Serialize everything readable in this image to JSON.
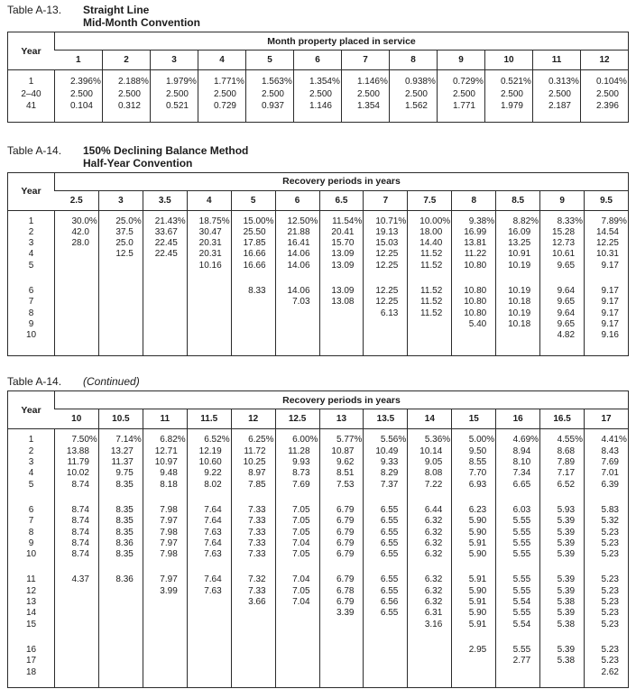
{
  "tables": [
    {
      "label": "Table A-13.",
      "title_lines": [
        "Straight Line",
        "Mid-Month Convention"
      ],
      "title_style": "bold",
      "year_header": "Year",
      "span_header": "Month property placed in service",
      "columns": [
        "1",
        "2",
        "3",
        "4",
        "5",
        "6",
        "7",
        "8",
        "9",
        "10",
        "11",
        "12"
      ],
      "groups": [
        [
          {
            "year": "1",
            "values": [
              "2.396%",
              "2.188%",
              "1.979%",
              "1.771%",
              "1.563%",
              "1.354%",
              "1.146%",
              "0.938%",
              "0.729%",
              "0.521%",
              "0.313%",
              "0.104%"
            ]
          },
          {
            "year": "2–40",
            "values": [
              "2.500",
              "2.500",
              "2.500",
              "2.500",
              "2.500",
              "2.500",
              "2.500",
              "2.500",
              "2.500",
              "2.500",
              "2.500",
              "2.500"
            ]
          },
          {
            "year": "41",
            "values": [
              "0.104",
              "0.312",
              "0.521",
              "0.729",
              "0.937",
              "1.146",
              "1.354",
              "1.562",
              "1.771",
              "1.979",
              "2.187",
              "2.396"
            ]
          }
        ]
      ]
    },
    {
      "label": "Table A-14.",
      "title_lines": [
        "150% Declining Balance Method",
        "Half-Year Convention"
      ],
      "title_style": "bold",
      "year_header": "Year",
      "span_header": "Recovery periods in years",
      "columns": [
        "2.5",
        "3",
        "3.5",
        "4",
        "5",
        "6",
        "6.5",
        "7",
        "7.5",
        "8",
        "8.5",
        "9",
        "9.5"
      ],
      "groups": [
        [
          {
            "year": "1",
            "values": [
              "30.0%",
              "25.0%",
              "21.43%",
              "18.75%",
              "15.00%",
              "12.50%",
              "11.54%",
              "10.71%",
              "10.00%",
              "9.38%",
              "8.82%",
              "8.33%",
              "7.89%"
            ]
          },
          {
            "year": "2",
            "values": [
              "42.0",
              "37.5",
              "33.67",
              "30.47",
              "25.50",
              "21.88",
              "20.41",
              "19.13",
              "18.00",
              "16.99",
              "16.09",
              "15.28",
              "14.54"
            ]
          },
          {
            "year": "3",
            "values": [
              "28.0",
              "25.0",
              "22.45",
              "20.31",
              "17.85",
              "16.41",
              "15.70",
              "15.03",
              "14.40",
              "13.81",
              "13.25",
              "12.73",
              "12.25"
            ]
          },
          {
            "year": "4",
            "values": [
              "",
              "12.5",
              "22.45",
              "20.31",
              "16.66",
              "14.06",
              "13.09",
              "12.25",
              "11.52",
              "11.22",
              "10.91",
              "10.61",
              "10.31"
            ]
          },
          {
            "year": "5",
            "values": [
              "",
              "",
              "",
              "10.16",
              "16.66",
              "14.06",
              "13.09",
              "12.25",
              "11.52",
              "10.80",
              "10.19",
              "9.65",
              "9.17"
            ]
          }
        ],
        [
          {
            "year": "6",
            "values": [
              "",
              "",
              "",
              "",
              "8.33",
              "14.06",
              "13.09",
              "12.25",
              "11.52",
              "10.80",
              "10.19",
              "9.64",
              "9.17"
            ]
          },
          {
            "year": "7",
            "values": [
              "",
              "",
              "",
              "",
              "",
              "7.03",
              "13.08",
              "12.25",
              "11.52",
              "10.80",
              "10.18",
              "9.65",
              "9.17"
            ]
          },
          {
            "year": "8",
            "values": [
              "",
              "",
              "",
              "",
              "",
              "",
              "",
              "6.13",
              "11.52",
              "10.80",
              "10.19",
              "9.64",
              "9.17"
            ]
          },
          {
            "year": "9",
            "values": [
              "",
              "",
              "",
              "",
              "",
              "",
              "",
              "",
              "",
              "5.40",
              "10.18",
              "9.65",
              "9.17"
            ]
          },
          {
            "year": "10",
            "values": [
              "",
              "",
              "",
              "",
              "",
              "",
              "",
              "",
              "",
              "",
              "",
              "4.82",
              "9.16"
            ]
          }
        ]
      ]
    },
    {
      "label": "Table A-14.",
      "title_lines": [
        "(Continued)"
      ],
      "title_style": "italic",
      "year_header": "Year",
      "span_header": "Recovery periods in years",
      "columns": [
        "10",
        "10.5",
        "11",
        "11.5",
        "12",
        "12.5",
        "13",
        "13.5",
        "14",
        "15",
        "16",
        "16.5",
        "17"
      ],
      "groups": [
        [
          {
            "year": "1",
            "values": [
              "7.50%",
              "7.14%",
              "6.82%",
              "6.52%",
              "6.25%",
              "6.00%",
              "5.77%",
              "5.56%",
              "5.36%",
              "5.00%",
              "4.69%",
              "4.55%",
              "4.41%"
            ]
          },
          {
            "year": "2",
            "values": [
              "13.88",
              "13.27",
              "12.71",
              "12.19",
              "11.72",
              "11.28",
              "10.87",
              "10.49",
              "10.14",
              "9.50",
              "8.94",
              "8.68",
              "8.43"
            ]
          },
          {
            "year": "3",
            "values": [
              "11.79",
              "11.37",
              "10.97",
              "10.60",
              "10.25",
              "9.93",
              "9.62",
              "9.33",
              "9.05",
              "8.55",
              "8.10",
              "7.89",
              "7.69"
            ]
          },
          {
            "year": "4",
            "values": [
              "10.02",
              "9.75",
              "9.48",
              "9.22",
              "8.97",
              "8.73",
              "8.51",
              "8.29",
              "8.08",
              "7.70",
              "7.34",
              "7.17",
              "7.01"
            ]
          },
          {
            "year": "5",
            "values": [
              "8.74",
              "8.35",
              "8.18",
              "8.02",
              "7.85",
              "7.69",
              "7.53",
              "7.37",
              "7.22",
              "6.93",
              "6.65",
              "6.52",
              "6.39"
            ]
          }
        ],
        [
          {
            "year": "6",
            "values": [
              "8.74",
              "8.35",
              "7.98",
              "7.64",
              "7.33",
              "7.05",
              "6.79",
              "6.55",
              "6.44",
              "6.23",
              "6.03",
              "5.93",
              "5.83"
            ]
          },
          {
            "year": "7",
            "values": [
              "8.74",
              "8.35",
              "7.97",
              "7.64",
              "7.33",
              "7.05",
              "6.79",
              "6.55",
              "6.32",
              "5.90",
              "5.55",
              "5.39",
              "5.32"
            ]
          },
          {
            "year": "8",
            "values": [
              "8.74",
              "8.35",
              "7.98",
              "7.63",
              "7.33",
              "7.05",
              "6.79",
              "6.55",
              "6.32",
              "5.90",
              "5.55",
              "5.39",
              "5.23"
            ]
          },
          {
            "year": "9",
            "values": [
              "8.74",
              "8.36",
              "7.97",
              "7.64",
              "7.33",
              "7.04",
              "6.79",
              "6.55",
              "6.32",
              "5.91",
              "5.55",
              "5.39",
              "5.23"
            ]
          },
          {
            "year": "10",
            "values": [
              "8.74",
              "8.35",
              "7.98",
              "7.63",
              "7.33",
              "7.05",
              "6.79",
              "6.55",
              "6.32",
              "5.90",
              "5.55",
              "5.39",
              "5.23"
            ]
          }
        ],
        [
          {
            "year": "11",
            "values": [
              "4.37",
              "8.36",
              "7.97",
              "7.64",
              "7.32",
              "7.04",
              "6.79",
              "6.55",
              "6.32",
              "5.91",
              "5.55",
              "5.39",
              "5.23"
            ]
          },
          {
            "year": "12",
            "values": [
              "",
              "",
              "3.99",
              "7.63",
              "7.33",
              "7.05",
              "6.78",
              "6.55",
              "6.32",
              "5.90",
              "5.55",
              "5.39",
              "5.23"
            ]
          },
          {
            "year": "13",
            "values": [
              "",
              "",
              "",
              "",
              "3.66",
              "7.04",
              "6.79",
              "6.56",
              "6.32",
              "5.91",
              "5.54",
              "5.38",
              "5.23"
            ]
          },
          {
            "year": "14",
            "values": [
              "",
              "",
              "",
              "",
              "",
              "",
              "3.39",
              "6.55",
              "6.31",
              "5.90",
              "5.55",
              "5.39",
              "5.23"
            ]
          },
          {
            "year": "15",
            "values": [
              "",
              "",
              "",
              "",
              "",
              "",
              "",
              "",
              "3.16",
              "5.91",
              "5.54",
              "5.38",
              "5.23"
            ]
          }
        ],
        [
          {
            "year": "16",
            "values": [
              "",
              "",
              "",
              "",
              "",
              "",
              "",
              "",
              "",
              "2.95",
              "5.55",
              "5.39",
              "5.23"
            ]
          },
          {
            "year": "17",
            "values": [
              "",
              "",
              "",
              "",
              "",
              "",
              "",
              "",
              "",
              "",
              "2.77",
              "5.38",
              "5.23"
            ]
          },
          {
            "year": "18",
            "values": [
              "",
              "",
              "",
              "",
              "",
              "",
              "",
              "",
              "",
              "",
              "",
              "",
              "2.62"
            ]
          }
        ]
      ]
    }
  ]
}
